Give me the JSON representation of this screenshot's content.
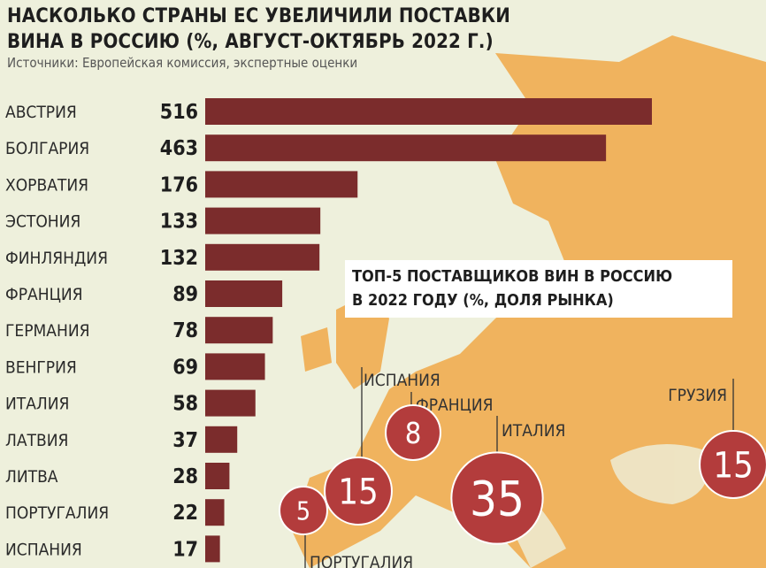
{
  "title_line1": "НАСКОЛЬКО СТРАНЫ ЕС УВЕЛИЧИЛИ ПОСТАВКИ",
  "title_line2": "ВИНА В РОССИЮ (%, АВГУСТ-ОКТЯБРЬ 2022 Г.)",
  "source": "Источники: Европейская комиссия, экспертные оценки",
  "colors": {
    "bar": "#7b2c2c",
    "bubble": "#b33c3c",
    "map": "#f0b35e",
    "background": "#eef0dc"
  },
  "chart_data": [
    {
      "type": "bar",
      "orientation": "horizontal",
      "title": "НАСКОЛЬКО СТРАНЫ ЕС УВЕЛИЧИЛИ ПОСТАВКИ ВИНА В РОССИЮ (%, АВГУСТ-ОКТЯБРЬ 2022 Г.)",
      "categories": [
        "АВСТРИЯ",
        "БОЛГАРИЯ",
        "ХОРВАТИЯ",
        "ЭСТОНИЯ",
        "ФИНЛЯНДИЯ",
        "ФРАНЦИЯ",
        "ГЕРМАНИЯ",
        "ВЕНГРИЯ",
        "ИТАЛИЯ",
        "ЛАТВИЯ",
        "ЛИТВА",
        "ПОРТУГАЛИЯ",
        "ИСПАНИЯ"
      ],
      "values": [
        516,
        463,
        176,
        133,
        132,
        89,
        78,
        69,
        58,
        37,
        28,
        22,
        17
      ],
      "xlim": [
        0,
        516
      ]
    },
    {
      "type": "bubble",
      "title_line1": "ТОП-5 ПОСТАВЩИКОВ ВИН В РОССИЮ",
      "title_line2": "В 2022 ГОДУ (%, ДОЛЯ РЫНКА)",
      "categories": [
        "ИСПАНИЯ",
        "ФРАНЦИЯ",
        "ИТАЛИЯ",
        "ГРУЗИЯ",
        "ПОРТУГАЛИЯ"
      ],
      "values": [
        15,
        8,
        35,
        15,
        5
      ]
    }
  ]
}
